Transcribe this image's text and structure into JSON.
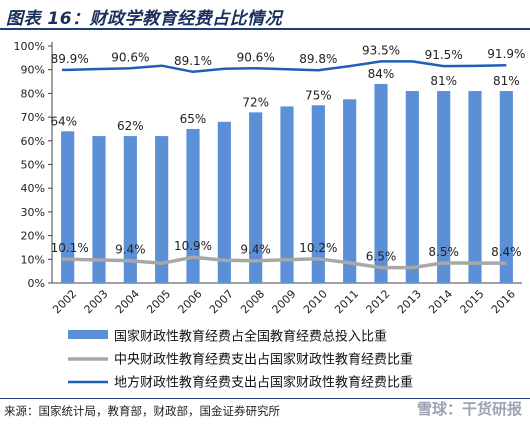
{
  "title": "图表 16：财政学教育经费占比情况",
  "source": "来源：国家统计局，教育部，财政部，国金证券研究所",
  "watermark": "雪球：干货研报",
  "colors": {
    "bar": "#5b8fd6",
    "central": "#a8a8a8",
    "local": "#1f5fb8",
    "title": "#1a2f5a"
  },
  "chart_data": {
    "type": "bar",
    "categories": [
      "2002",
      "2003",
      "2004",
      "2005",
      "2006",
      "2007",
      "2008",
      "2009",
      "2010",
      "2011",
      "2012",
      "2013",
      "2014",
      "2015",
      "2016"
    ],
    "ylim": [
      0,
      100
    ],
    "yticks": [
      "0%",
      "10%",
      "20%",
      "30%",
      "40%",
      "50%",
      "60%",
      "70%",
      "80%",
      "90%",
      "100%"
    ],
    "series": [
      {
        "name": "国家财政性教育经费占全国教育经费总投入比重",
        "type": "bar",
        "values": [
          64,
          62,
          62,
          62,
          65,
          68,
          72,
          74.5,
          75,
          77.5,
          84,
          81,
          81,
          81,
          81
        ],
        "labels": [
          "64%",
          "",
          "62%",
          "",
          "65%",
          "",
          "72%",
          "",
          "75%",
          "",
          "84%",
          "",
          "81%",
          "",
          "81%"
        ]
      },
      {
        "name": "中央财政性教育经费支出占国家财政性教育经费比重",
        "type": "line",
        "values": [
          10.1,
          9.7,
          9.4,
          8.3,
          10.9,
          9.6,
          9.4,
          9.8,
          10.2,
          8.5,
          6.5,
          6.5,
          8.5,
          8.4,
          8.4
        ],
        "labels": [
          "10.1%",
          "",
          "9.4%",
          "",
          "10.9%",
          "",
          "9.4%",
          "",
          "10.2%",
          "",
          "6.5%",
          "",
          "8.5%",
          "",
          "8.4%"
        ]
      },
      {
        "name": "地方财政性教育经费支出占国家财政性教育经费比重",
        "type": "line",
        "values": [
          89.9,
          90.3,
          90.6,
          91.7,
          89.1,
          90.4,
          90.6,
          90.2,
          89.8,
          91.5,
          93.5,
          93.5,
          91.5,
          91.6,
          91.9
        ],
        "labels": [
          "89.9%",
          "",
          "90.6%",
          "",
          "89.1%",
          "",
          "90.6%",
          "",
          "89.8%",
          "",
          "93.5%",
          "",
          "91.5%",
          "",
          "91.9%"
        ]
      }
    ],
    "legend_position": "bottom",
    "grid": false
  }
}
